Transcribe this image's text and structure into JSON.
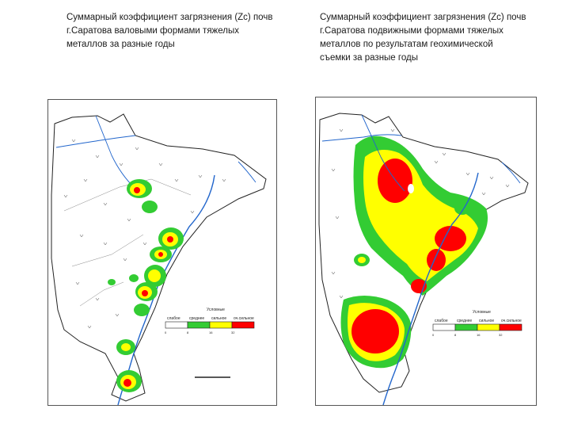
{
  "left_panel": {
    "caption": "Суммарный коэффициент загрязнения (Zc) почв\nг.Саратова валовыми формами тяжелых\nметаллов за разные годы",
    "legend": {
      "title": "Условные",
      "labels": [
        "слабое",
        "среднее",
        "сильное",
        "оч.сильное"
      ],
      "ticks": [
        "0",
        "8",
        "16",
        "32"
      ],
      "colors": [
        "#ffffff",
        "#33cc33",
        "#ffff00",
        "#ff0000"
      ]
    }
  },
  "right_panel": {
    "caption": "Суммарный коэффициент загрязнения (Zc) почв\nг.Саратова подвижными формами тяжелых\nметаллов по результатам геохимической\nсъемки за разные годы",
    "legend": {
      "title": "Условные",
      "labels": [
        "слабое",
        "среднее",
        "сильное",
        "оч.сильное"
      ],
      "ticks": [
        "0",
        "8",
        "16",
        "32"
      ],
      "colors": [
        "#ffffff",
        "#33cc33",
        "#ffff00",
        "#ff0000"
      ]
    }
  },
  "colors": {
    "city_outline": "#222222",
    "river": "#2266cc",
    "low": "#ffffff",
    "medium": "#33cc33",
    "high": "#ffff00",
    "very_high": "#ff0000"
  }
}
